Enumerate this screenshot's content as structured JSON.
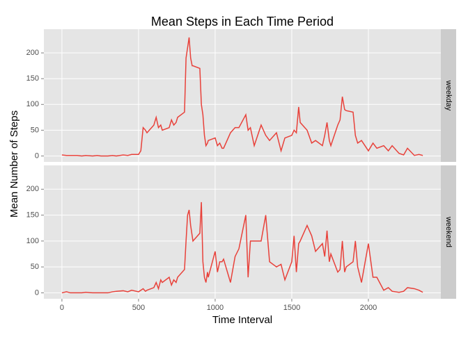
{
  "chart_data": {
    "type": "line",
    "title": "Mean Steps in Each Time Period",
    "x_label": "Time Interval",
    "y_label": "Mean Number of Steps",
    "x": [
      0,
      30,
      55,
      100,
      130,
      155,
      200,
      230,
      255,
      300,
      330,
      355,
      400,
      430,
      455,
      500,
      515,
      530,
      545,
      555,
      600,
      615,
      630,
      645,
      655,
      700,
      715,
      730,
      745,
      755,
      800,
      810,
      820,
      830,
      840,
      850,
      855,
      900,
      910,
      920,
      930,
      940,
      950,
      955,
      1000,
      1015,
      1030,
      1045,
      1055,
      1100,
      1130,
      1155,
      1200,
      1215,
      1230,
      1255,
      1300,
      1330,
      1355,
      1400,
      1430,
      1455,
      1500,
      1515,
      1530,
      1545,
      1555,
      1600,
      1630,
      1655,
      1700,
      1715,
      1730,
      1745,
      1755,
      1800,
      1815,
      1830,
      1845,
      1855,
      1900,
      1915,
      1930,
      1955,
      2000,
      2030,
      2055,
      2100,
      2130,
      2155,
      2200,
      2230,
      2255,
      2300,
      2330,
      2355
    ],
    "xlim": [
      -117.75,
      2472.75
    ],
    "xticks": [
      0,
      500,
      1000,
      1500,
      2000
    ],
    "ylim": [
      -11.5,
      246
    ],
    "yticks": [
      0,
      50,
      100,
      150,
      200
    ],
    "grid": true,
    "series": [
      {
        "name": "weekday",
        "color": "#e8413a",
        "values": [
          2,
          1,
          1,
          1,
          0,
          1,
          0,
          1,
          0,
          0,
          1,
          0,
          2,
          1,
          3,
          3,
          10,
          55,
          50,
          45,
          60,
          75,
          55,
          60,
          50,
          55,
          70,
          60,
          65,
          75,
          85,
          190,
          210,
          230,
          190,
          175,
          175,
          170,
          100,
          80,
          40,
          20,
          25,
          30,
          35,
          20,
          25,
          15,
          15,
          45,
          55,
          55,
          80,
          50,
          55,
          20,
          60,
          40,
          30,
          45,
          10,
          35,
          40,
          50,
          45,
          95,
          65,
          50,
          25,
          30,
          20,
          40,
          65,
          30,
          20,
          60,
          70,
          115,
          90,
          88,
          85,
          40,
          25,
          30,
          10,
          25,
          15,
          20,
          10,
          20,
          5,
          2,
          15,
          1,
          3,
          1
        ]
      },
      {
        "name": "weekend",
        "color": "#e8413a",
        "values": [
          0,
          2,
          0,
          0,
          0,
          1,
          0,
          0,
          0,
          0,
          2,
          3,
          4,
          2,
          5,
          2,
          5,
          8,
          3,
          5,
          10,
          20,
          8,
          25,
          20,
          30,
          15,
          25,
          20,
          30,
          45,
          100,
          150,
          160,
          130,
          110,
          100,
          115,
          175,
          60,
          30,
          20,
          40,
          30,
          80,
          40,
          60,
          60,
          65,
          20,
          70,
          85,
          150,
          30,
          100,
          100,
          100,
          150,
          60,
          50,
          55,
          25,
          60,
          110,
          40,
          95,
          100,
          130,
          110,
          80,
          95,
          70,
          120,
          60,
          75,
          40,
          45,
          100,
          40,
          50,
          60,
          100,
          50,
          20,
          95,
          30,
          30,
          5,
          10,
          3,
          1,
          3,
          10,
          8,
          5,
          1
        ]
      }
    ]
  }
}
